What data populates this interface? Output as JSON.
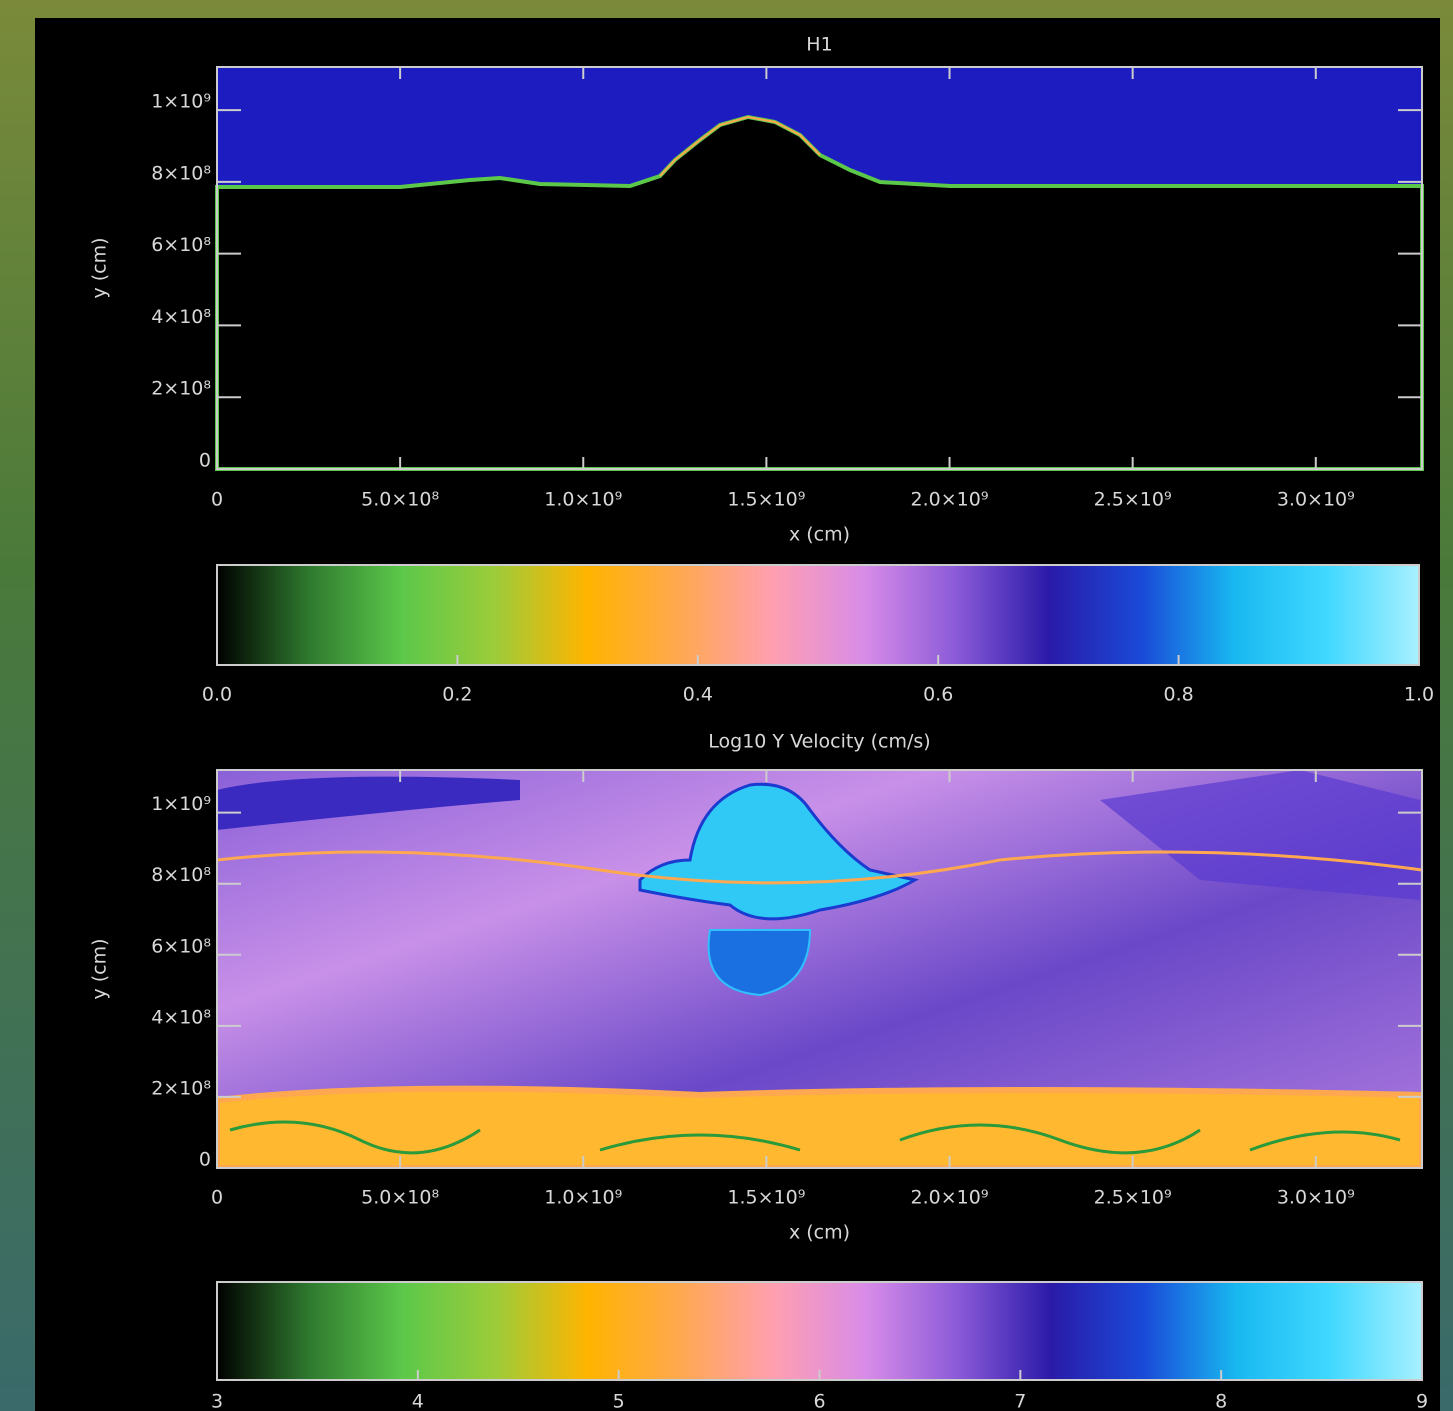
{
  "chart_data": [
    {
      "type": "image",
      "title": "H1",
      "xlabel": "x (cm)",
      "ylabel": "y (cm)",
      "xlim": [
        0,
        3290000000
      ],
      "ylim": [
        0,
        1120000000
      ],
      "xticks": [
        0,
        {
          "value": 500000000,
          "label": "5.0×10⁸"
        },
        {
          "value": 1000000000,
          "label": "1.0×10⁹"
        },
        {
          "value": 1500000000,
          "label": "1.5×10⁹"
        },
        {
          "value": 2000000000,
          "label": "2.0×10⁹"
        },
        {
          "value": 2500000000,
          "label": "2.5×10⁹"
        },
        {
          "value": 3000000000,
          "label": "3.0×10⁹"
        }
      ],
      "yticks": [
        0,
        {
          "value": 200000000,
          "label": "2×10⁸"
        },
        {
          "value": 400000000,
          "label": "4×10⁸"
        },
        {
          "value": 600000000,
          "label": "6×10⁸"
        },
        {
          "value": 800000000,
          "label": "8×10⁸"
        },
        {
          "value": 1000000000,
          "label": "1×10⁹"
        }
      ],
      "colorbar": {
        "lim": [
          0,
          1
        ],
        "ticks": [
          {
            "value": 0,
            "label": "0.0"
          },
          0.2,
          0.4,
          0.6,
          0.8,
          {
            "value": 1,
            "label": "1.0"
          }
        ],
        "colormap": [
          "#000000",
          "#2f7a2f",
          "#5cc84a",
          "#9ccc3a",
          "#ffb400",
          "#ffa850",
          "#ff9fb0",
          "#d88ce8",
          "#8a5ad8",
          "#2a1aa8",
          "#1a4ad8",
          "#18b8f0",
          "#40d8ff",
          "#a8f0ff"
        ]
      }
    },
    {
      "type": "image",
      "title": "Log10 Y Velocity (cm/s)",
      "xlabel": "x (cm)",
      "ylabel": "y (cm)",
      "xlim": [
        0,
        3290000000
      ],
      "ylim": [
        0,
        1120000000
      ],
      "xticks": [
        0,
        {
          "value": 500000000,
          "label": "5.0×10⁸"
        },
        {
          "value": 1000000000,
          "label": "1.0×10⁹"
        },
        {
          "value": 1500000000,
          "label": "1.5×10⁹"
        },
        {
          "value": 2000000000,
          "label": "2.0×10⁹"
        },
        {
          "value": 2500000000,
          "label": "2.5×10⁹"
        },
        {
          "value": 3000000000,
          "label": "3.0×10⁹"
        }
      ],
      "yticks": [
        0,
        {
          "value": 200000000,
          "label": "2×10⁸"
        },
        {
          "value": 400000000,
          "label": "4×10⁸"
        },
        {
          "value": 600000000,
          "label": "6×10⁸"
        },
        {
          "value": 800000000,
          "label": "8×10⁸"
        },
        {
          "value": 1000000000,
          "label": "1×10⁹"
        }
      ],
      "colorbar": {
        "lim": [
          3,
          9
        ],
        "ticks": [
          3,
          4,
          5,
          6,
          7,
          8,
          9
        ],
        "colormap": [
          "#000000",
          "#2f7a2f",
          "#5cc84a",
          "#9ccc3a",
          "#ffb400",
          "#ffa850",
          "#ff9fb0",
          "#d88ce8",
          "#8a5ad8",
          "#2a1aa8",
          "#1a4ad8",
          "#18b8f0",
          "#40d8ff",
          "#a8f0ff"
        ]
      }
    }
  ]
}
